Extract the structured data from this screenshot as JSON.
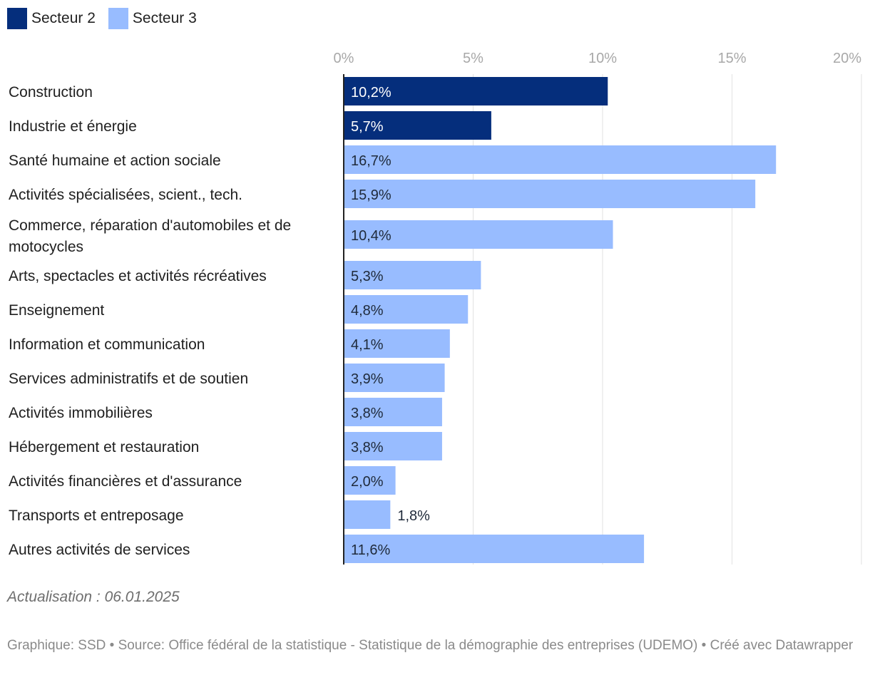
{
  "legend": [
    {
      "label": "Secteur 2",
      "color": "#052e7c"
    },
    {
      "label": "Secteur 3",
      "color": "#98bcff"
    }
  ],
  "chart_data": {
    "type": "bar",
    "orientation": "horizontal",
    "title": "",
    "xlim": [
      0,
      20
    ],
    "xticks": [
      "0%",
      "5%",
      "10%",
      "15%",
      "20%"
    ],
    "grid": true,
    "legend_position": "top-left",
    "bars": [
      {
        "label": "Construction",
        "value": 10.2,
        "display": "10,2%",
        "series": "Secteur 2"
      },
      {
        "label": "Industrie et énergie",
        "value": 5.7,
        "display": "5,7%",
        "series": "Secteur 2"
      },
      {
        "label": "Santé humaine et action sociale",
        "value": 16.7,
        "display": "16,7%",
        "series": "Secteur 3"
      },
      {
        "label": "Activités spécialisées, scient., tech.",
        "value": 15.9,
        "display": "15,9%",
        "series": "Secteur 3"
      },
      {
        "label": [
          "Commerce, réparation d'automobiles et de",
          "motocycles"
        ],
        "value": 10.4,
        "display": "10,4%",
        "series": "Secteur 3"
      },
      {
        "label": "Arts, spectacles et activités récréatives",
        "value": 5.3,
        "display": "5,3%",
        "series": "Secteur 3"
      },
      {
        "label": "Enseignement",
        "value": 4.8,
        "display": "4,8%",
        "series": "Secteur 3"
      },
      {
        "label": "Information et communication",
        "value": 4.1,
        "display": "4,1%",
        "series": "Secteur 3"
      },
      {
        "label": "Services administratifs et de soutien",
        "value": 3.9,
        "display": "3,9%",
        "series": "Secteur 3"
      },
      {
        "label": "Activités immobilières",
        "value": 3.8,
        "display": "3,8%",
        "series": "Secteur 3"
      },
      {
        "label": "Hébergement et restauration",
        "value": 3.8,
        "display": "3,8%",
        "series": "Secteur 3"
      },
      {
        "label": "Activités financières et d'assurance",
        "value": 2.0,
        "display": "2,0%",
        "series": "Secteur 3"
      },
      {
        "label": "Transports et entreposage",
        "value": 1.8,
        "display": "1,8%",
        "series": "Secteur 3",
        "label_outside": true
      },
      {
        "label": "Autres activités de services",
        "value": 11.6,
        "display": "11,6%",
        "series": "Secteur 3"
      }
    ]
  },
  "footer": {
    "update": "Actualisation : 06.01.2025",
    "source": "Graphique: SSD • Source: Office fédéral de la statistique - Statistique de la démographie des entreprises (UDEMO) • Créé avec Datawrapper"
  }
}
